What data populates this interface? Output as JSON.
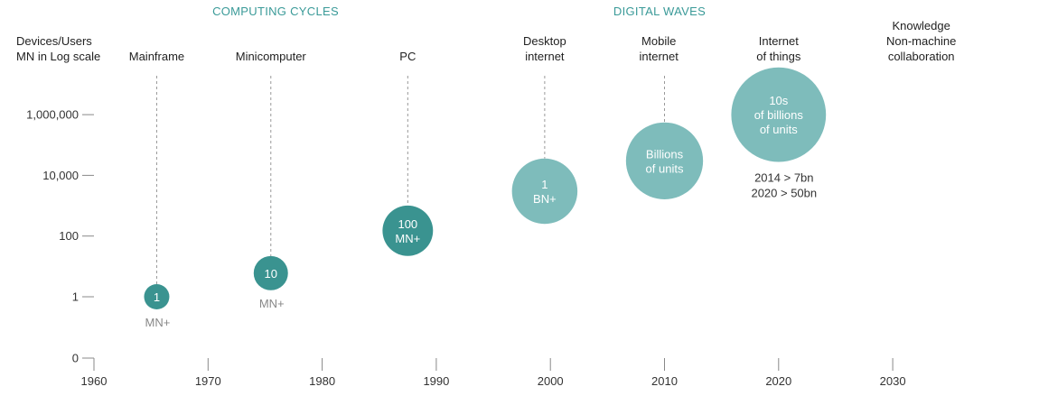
{
  "section_titles": [
    "COMPUTING CYCLES",
    "DIGITAL WAVES"
  ],
  "ylabel_lines": [
    "Devices/Users",
    "MN in Log scale"
  ],
  "colors": {
    "dark_teal": "#3a9390",
    "light_teal": "#7ebcbb",
    "section_title": "#3a9a98"
  },
  "chart_data": {
    "type": "scatter",
    "xlabel": "",
    "ylabel": "Devices/Users MN in Log scale",
    "y_scale": "log",
    "xlim": [
      1960,
      2030
    ],
    "x_ticks": [
      1960,
      1970,
      1980,
      1990,
      2000,
      2010,
      2020,
      2030
    ],
    "y_ticks": [
      {
        "value": 0,
        "label": "0"
      },
      {
        "value": 1,
        "label": "1"
      },
      {
        "value": 100,
        "label": "100"
      },
      {
        "value": 10000,
        "label": "10,000"
      },
      {
        "value": 1000000,
        "label": "1,000,000"
      }
    ],
    "eras": [
      {
        "label": [
          "Mainframe"
        ],
        "x": 1965.5
      },
      {
        "label": [
          "Minicomputer"
        ],
        "x": 1975.5
      },
      {
        "label": [
          "PC"
        ],
        "x": 1987.5
      },
      {
        "label": [
          "Desktop",
          "internet"
        ],
        "x": 1999.5
      },
      {
        "label": [
          "Mobile",
          "internet"
        ],
        "x": 2009.5
      },
      {
        "label": [
          "Internet",
          "of things"
        ],
        "x": 2020
      },
      {
        "label": [
          "Knowledge",
          "Non-machine",
          "collaboration"
        ],
        "x": 2032.5
      }
    ],
    "points": [
      {
        "era": "Mainframe",
        "x": 1965.5,
        "y": 1,
        "inside": [
          "1"
        ],
        "below": "MN+",
        "color": "dark"
      },
      {
        "era": "Minicomputer",
        "x": 1975.5,
        "y": 6,
        "inside": [
          "10"
        ],
        "below": "MN+",
        "color": "dark"
      },
      {
        "era": "PC",
        "x": 1987.5,
        "y": 150,
        "inside": [
          "100",
          "MN+"
        ],
        "color": "dark"
      },
      {
        "era": "Desktop internet",
        "x": 1999.5,
        "y": 3000,
        "inside": [
          "1",
          "BN+"
        ],
        "color": "light"
      },
      {
        "era": "Mobile internet",
        "x": 2010,
        "y": 30000,
        "inside": [
          "Billions",
          "of units"
        ],
        "color": "light"
      },
      {
        "era": "Internet of things",
        "x": 2020,
        "y": 1000000,
        "inside": [
          "10s",
          "of billions",
          "of units"
        ],
        "color": "light"
      }
    ],
    "notes": [
      "2014 > 7bn",
      "2020 > 50bn"
    ]
  }
}
